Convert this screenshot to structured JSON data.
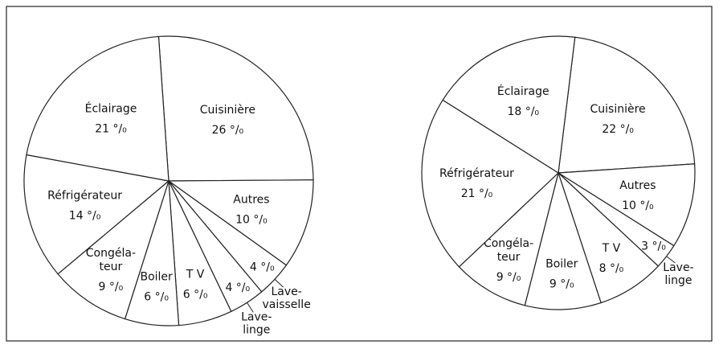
{
  "chart_data": [
    {
      "type": "pie",
      "categories": [
        [
          "Cuisinière"
        ],
        [
          "Autres"
        ],
        [
          "Lave-",
          "vaisselle"
        ],
        [
          "Lave-",
          "linge"
        ],
        [
          "T V"
        ],
        [
          "Boiler"
        ],
        [
          "Congéla-",
          "teur"
        ],
        [
          "Réfrigérateur"
        ],
        [
          "Éclairage"
        ]
      ],
      "values": [
        26,
        10,
        4,
        4,
        6,
        6,
        9,
        14,
        21
      ],
      "value_labels": [
        "26 °/₀",
        "10 °/₀",
        "4 °/₀",
        "4 °/₀",
        "6 °/₀",
        "6 °/₀",
        "9 °/₀",
        "14 °/₀",
        "21 °/₀"
      ]
    },
    {
      "type": "pie",
      "categories": [
        [
          "Cuisinière"
        ],
        [
          "Autres"
        ],
        [
          "Lave-",
          "linge"
        ],
        [
          "T V"
        ],
        [
          "Boiler"
        ],
        [
          "Congéla-",
          "teur"
        ],
        [
          "Réfrigérateur"
        ],
        [
          "Éclairage"
        ]
      ],
      "values": [
        22,
        10,
        3,
        8,
        9,
        9,
        21,
        18
      ],
      "value_labels": [
        "22 °/₀",
        "10 °/₀",
        "3 °/₀",
        "8 °/₀",
        "9 °/₀",
        "9 °/₀",
        "21 °/₀",
        "18 °/₀"
      ]
    }
  ]
}
